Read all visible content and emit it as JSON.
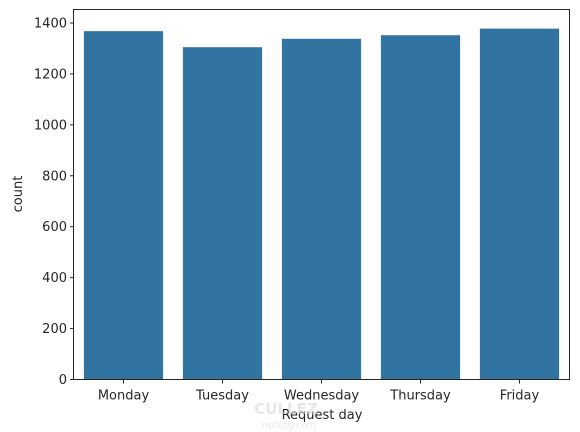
{
  "chart_data": {
    "type": "bar",
    "categories": [
      "Monday",
      "Tuesday",
      "Wednesday",
      "Thursday",
      "Friday"
    ],
    "values": [
      1368,
      1305,
      1338,
      1352,
      1378
    ],
    "xlabel": "Request day",
    "ylabel": "count",
    "ylim": [
      0,
      1400
    ],
    "yticks": [
      0,
      200,
      400,
      600,
      800,
      1000,
      1200,
      1400
    ],
    "bar_color": "#3274a1",
    "grid": false,
    "legend": "none"
  },
  "watermark": {
    "line1": "CULLEZ",
    "line2": "nofezly.com"
  }
}
